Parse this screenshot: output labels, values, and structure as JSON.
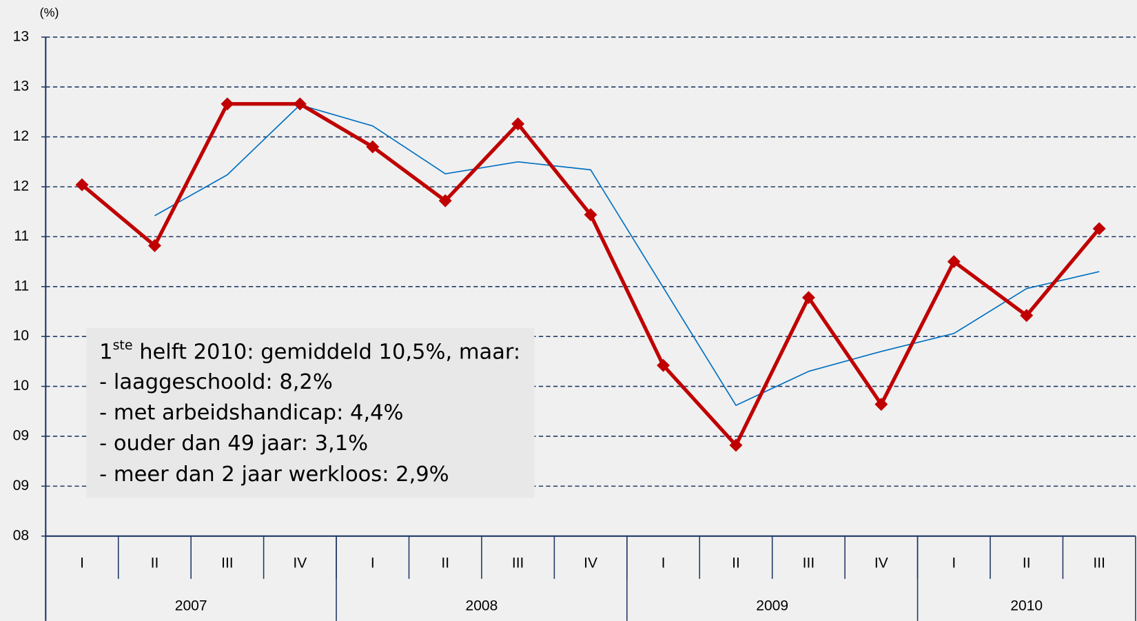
{
  "chart_data": {
    "type": "line",
    "unit_label": "(%)",
    "categories": [
      "I",
      "II",
      "III",
      "IV",
      "I",
      "II",
      "III",
      "IV",
      "I",
      "II",
      "III",
      "IV",
      "I",
      "II",
      "III"
    ],
    "groups": [
      {
        "name": "2007",
        "span": 4
      },
      {
        "name": "2008",
        "span": 4
      },
      {
        "name": "2009",
        "span": 4
      },
      {
        "name": "2010",
        "span": 3
      }
    ],
    "series": [
      {
        "color": "#c00000",
        "values": [
          11.52,
          10.91,
          12.33,
          12.33,
          11.9,
          11.36,
          12.13,
          11.22,
          9.71,
          8.91,
          10.39,
          9.32,
          10.75,
          10.21,
          11.08
        ]
      },
      {
        "color": "#0070c0",
        "values": [
          null,
          11.21,
          11.62,
          12.32,
          12.11,
          11.63,
          11.75,
          11.67,
          10.49,
          9.31,
          9.65,
          9.85,
          10.03,
          10.48,
          10.65
        ]
      }
    ],
    "ylim": [
      8,
      13
    ],
    "yticks": [
      {
        "value": 8,
        "label": "08"
      },
      {
        "value": 8.5,
        "label": "09"
      },
      {
        "value": 9,
        "label": "09"
      },
      {
        "value": 9.5,
        "label": "10"
      },
      {
        "value": 10,
        "label": "10"
      },
      {
        "value": 10.5,
        "label": "11"
      },
      {
        "value": 11,
        "label": "11"
      },
      {
        "value": 11.5,
        "label": "12"
      },
      {
        "value": 12,
        "label": "12"
      },
      {
        "value": 12.5,
        "label": "13"
      },
      {
        "value": 13,
        "label": "13"
      }
    ],
    "grid": true,
    "annotation": {
      "lead": "1",
      "sup": "ste",
      "text": " helft 2010:  gemiddeld 10,5%, maar:",
      "lines": [
        "- laaggeschoold: 8,2%",
        "- met arbeidshandicap: 4,4%",
        "- ouder dan 49 jaar: 3,1%",
        "- meer dan 2 jaar werkloos: 2,9%"
      ]
    }
  }
}
